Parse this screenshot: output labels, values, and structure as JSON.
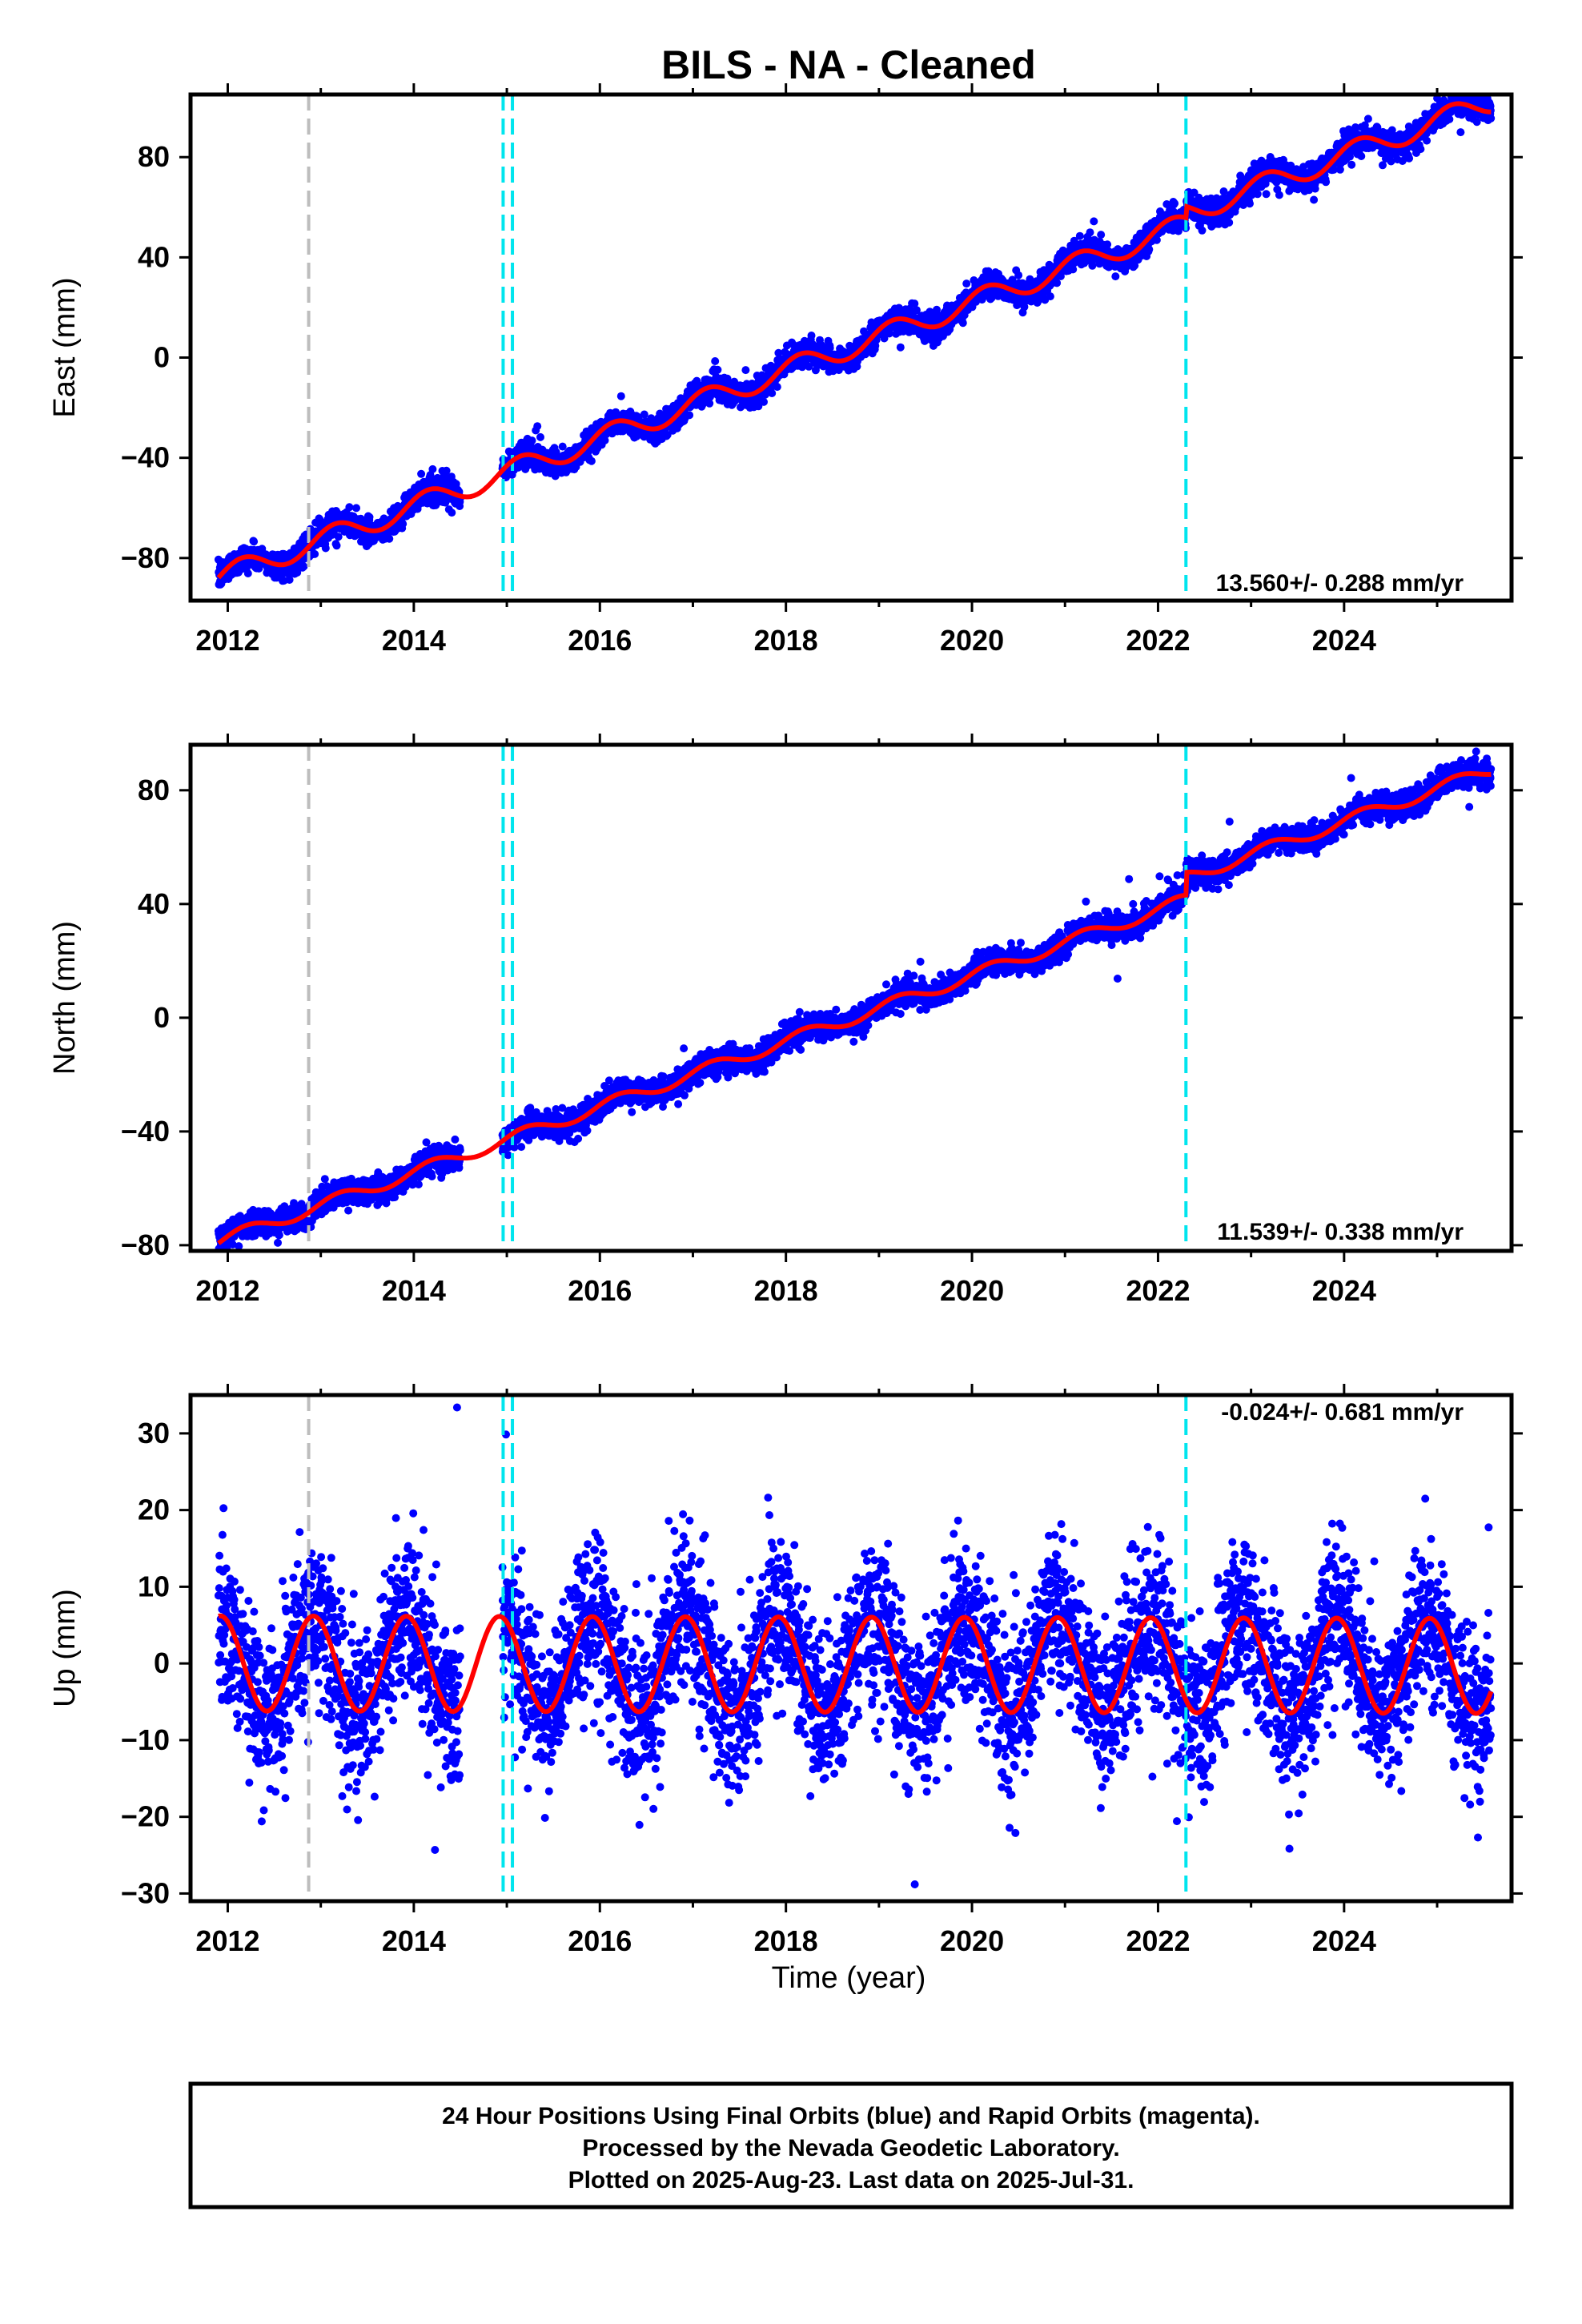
{
  "title": "BILS  - NA - Cleaned",
  "xlabel": "Time (year)",
  "footer": {
    "line1": "24 Hour Positions Using Final Orbits (blue) and Rapid Orbits (magenta).",
    "line2": "Processed by the Nevada Geodetic Laboratory.",
    "line3": "Plotted on 2025-Aug-23. Last data on 2025-Jul-31."
  },
  "colors": {
    "data": "#0000ff",
    "model": "#ff0000",
    "equipment_change": "#00e5ee",
    "other_event": "#bdbdbd"
  },
  "chart_data": [
    {
      "type": "scatter",
      "panel": "east",
      "ylabel": "East (mm)",
      "rate_text": "13.560+/- 0.288 mm/yr",
      "xlim": [
        2011.6,
        2025.8
      ],
      "ylim": [
        -97,
        105
      ],
      "xticks": [
        2012,
        2014,
        2016,
        2018,
        2020,
        2022,
        2024
      ],
      "yticks": [
        -80,
        -40,
        0,
        40,
        80
      ],
      "grid": false,
      "data_span": [
        2011.9,
        2025.58
      ],
      "model": {
        "slope": 13.56,
        "value_2012": -86.5,
        "annual_amp": 4.5,
        "annual_phase_peak": 0.15,
        "offset_2022_3": 4.5,
        "noise_sd": 2.6
      },
      "event_lines": [
        {
          "x": 2012.87,
          "kind": "other_event"
        },
        {
          "x": 2014.96,
          "kind": "equipment_change"
        },
        {
          "x": 2015.06,
          "kind": "equipment_change"
        },
        {
          "x": 2022.3,
          "kind": "equipment_change"
        }
      ]
    },
    {
      "type": "scatter",
      "panel": "north",
      "ylabel": "North (mm)",
      "rate_text": "11.539+/- 0.338 mm/yr",
      "xlim": [
        2011.6,
        2025.8
      ],
      "ylim": [
        -82,
        96
      ],
      "xticks": [
        2012,
        2014,
        2016,
        2018,
        2020,
        2022,
        2024
      ],
      "yticks": [
        -80,
        -40,
        0,
        40,
        80
      ],
      "grid": false,
      "data_span": [
        2011.9,
        2025.58
      ],
      "model": {
        "slope": 11.54,
        "value_2012": -77.5,
        "annual_amp": 2.2,
        "annual_phase_peak": 0.2,
        "offset_2022_3": 8.0,
        "noise_sd": 2.3
      },
      "event_lines": [
        {
          "x": 2012.87,
          "kind": "other_event"
        },
        {
          "x": 2014.96,
          "kind": "equipment_change"
        },
        {
          "x": 2015.06,
          "kind": "equipment_change"
        },
        {
          "x": 2022.3,
          "kind": "equipment_change"
        }
      ]
    },
    {
      "type": "scatter",
      "panel": "up",
      "ylabel": "Up (mm)",
      "rate_text": "-0.024+/- 0.681 mm/yr",
      "xlim": [
        2011.6,
        2025.8
      ],
      "ylim": [
        -31,
        35
      ],
      "xticks": [
        2012,
        2014,
        2016,
        2018,
        2020,
        2022,
        2024
      ],
      "yticks": [
        -30,
        -20,
        -10,
        0,
        10,
        20,
        30
      ],
      "grid": false,
      "data_span": [
        2011.9,
        2025.58
      ],
      "model": {
        "slope": -0.024,
        "value_2012": 0,
        "annual_amp": 6.2,
        "annual_phase_peak": 0.92,
        "offset_2022_3": 0,
        "noise_sd": 5.2
      },
      "event_lines": [
        {
          "x": 2012.87,
          "kind": "other_event"
        },
        {
          "x": 2014.96,
          "kind": "equipment_change"
        },
        {
          "x": 2015.06,
          "kind": "equipment_change"
        },
        {
          "x": 2022.3,
          "kind": "equipment_change"
        }
      ]
    }
  ]
}
